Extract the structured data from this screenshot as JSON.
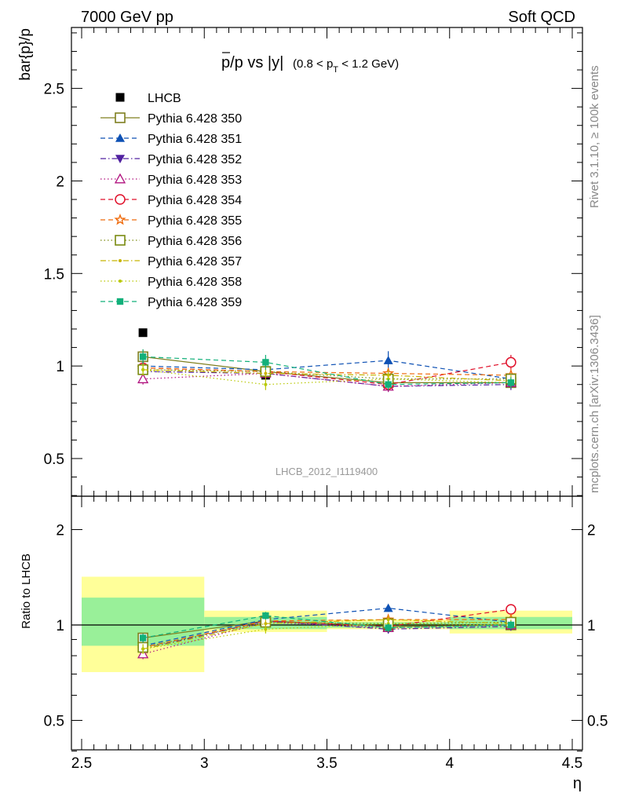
{
  "header": {
    "left": "7000 GeV pp",
    "right": "Soft QCD"
  },
  "side_text": {
    "rivet": "Rivet 3.1.10, ≥ 100k events",
    "mcplots": "mcplots.cern.ch [arXiv:1306.3436]"
  },
  "chart_data": [
    {
      "type": "scatter",
      "title": "p̅/p vs |y|",
      "title_main": "p/p vs |y|",
      "title_range": "(0.8 < p",
      "title_range_sub": "T",
      "title_range_end": " < 1.2 GeV)",
      "ylabel": "bar{p}/p",
      "watermark": "LHCB_2012_I1119400",
      "xlim": [
        2.5,
        4.5
      ],
      "ylim": [
        0.3,
        2.85
      ],
      "yticks": [
        0.5,
        1,
        1.5,
        2,
        2.5
      ],
      "ytick_labels": [
        "0.5",
        "1",
        "1.5",
        "2",
        "2.5"
      ],
      "x": [
        2.75,
        3.25,
        3.75,
        4.25
      ],
      "series": [
        {
          "name": "LHCB",
          "color": "#000000",
          "marker": "square-filled",
          "line": "none",
          "values": [
            1.18,
            0.95,
            null,
            null
          ]
        },
        {
          "name": "Pythia 6.428 350",
          "color": "#7f7f1f",
          "marker": "square-open",
          "line": "solid",
          "values": [
            1.05,
            0.97,
            0.91,
            0.91
          ],
          "err": [
            0.04,
            0.03,
            0.03,
            0.03
          ]
        },
        {
          "name": "Pythia 6.428 351",
          "color": "#0e51b4",
          "marker": "triangle-up-filled",
          "line": "dashed",
          "values": [
            1.0,
            0.98,
            1.03,
            0.93
          ],
          "err": [
            0.03,
            0.03,
            0.05,
            0.03
          ]
        },
        {
          "name": "Pythia 6.428 352",
          "color": "#5020a0",
          "marker": "triangle-down-filled",
          "line": "dashdot",
          "values": [
            0.97,
            0.96,
            0.89,
            0.9
          ],
          "err": [
            0.03,
            0.03,
            0.03,
            0.03
          ]
        },
        {
          "name": "Pythia 6.428 353",
          "color": "#b0107e",
          "marker": "triangle-up-open",
          "line": "dotted",
          "values": [
            0.93,
            0.96,
            0.89,
            0.91
          ],
          "err": [
            0.03,
            0.03,
            0.03,
            0.03
          ]
        },
        {
          "name": "Pythia 6.428 354",
          "color": "#e0102a",
          "marker": "circle-open",
          "line": "dashed",
          "values": [
            0.99,
            0.97,
            0.9,
            1.02
          ],
          "err": [
            0.03,
            0.03,
            0.03,
            0.04
          ]
        },
        {
          "name": "Pythia 6.428 355",
          "color": "#ef6c0f",
          "marker": "star-open",
          "line": "dashed",
          "values": [
            0.99,
            0.97,
            0.96,
            0.95
          ],
          "err": [
            0.03,
            0.03,
            0.03,
            0.03
          ]
        },
        {
          "name": "Pythia 6.428 356",
          "color": "#7a8a10",
          "marker": "square-open",
          "line": "dotted",
          "values": [
            0.98,
            0.97,
            0.93,
            0.93
          ],
          "err": [
            0.03,
            0.03,
            0.03,
            0.03
          ]
        },
        {
          "name": "Pythia 6.428 357",
          "color": "#c8b400",
          "marker": "small-dot",
          "line": "dashdot",
          "values": [
            0.98,
            0.96,
            0.95,
            0.92
          ],
          "err": [
            0.03,
            0.03,
            0.03,
            0.03
          ]
        },
        {
          "name": "Pythia 6.428 358",
          "color": "#b8c800",
          "marker": "small-dot",
          "line": "dotted",
          "values": [
            0.98,
            0.9,
            0.93,
            0.91
          ],
          "err": [
            0.03,
            0.03,
            0.03,
            0.03
          ]
        },
        {
          "name": "Pythia 6.428 359",
          "color": "#12b07a",
          "marker": "square-filled-small",
          "line": "dashed",
          "values": [
            1.05,
            1.02,
            0.9,
            0.91
          ],
          "err": [
            0.04,
            0.04,
            0.03,
            0.03
          ]
        }
      ]
    },
    {
      "type": "scatter",
      "ylabel": "Ratio to LHCB",
      "xlabel": "η",
      "xlim": [
        2.5,
        4.5
      ],
      "ylim": [
        0.35,
        2.35
      ],
      "log_y": true,
      "yticks": [
        0.5,
        1,
        2
      ],
      "ytick_labels": [
        "0.5",
        "1",
        "2"
      ],
      "xticks": [
        2.5,
        3,
        3.5,
        4,
        4.5
      ],
      "xtick_labels": [
        "2.5",
        "3",
        "3.5",
        "4",
        "4.5"
      ],
      "bands": [
        {
          "x": [
            2.5,
            3.0
          ],
          "yellow": [
            0.71,
            1.42
          ],
          "green": [
            0.86,
            1.22
          ]
        },
        {
          "x": [
            3.0,
            3.5
          ],
          "yellow": [
            0.95,
            1.11
          ],
          "green": [
            0.97,
            1.06
          ]
        },
        {
          "x": [
            3.5,
            4.0
          ],
          "yellow": [
            0.97,
            1.04
          ],
          "green": [
            0.98,
            1.02
          ]
        },
        {
          "x": [
            4.0,
            4.5
          ],
          "yellow": [
            0.94,
            1.11
          ],
          "green": [
            0.97,
            1.06
          ]
        }
      ],
      "x": [
        2.75,
        3.25,
        3.75,
        4.25
      ],
      "series": [
        {
          "name": "Pythia 6.428 350",
          "values": [
            0.91,
            1.03,
            0.99,
            1.0
          ]
        },
        {
          "name": "Pythia 6.428 351",
          "values": [
            0.86,
            1.04,
            1.13,
            1.02
          ]
        },
        {
          "name": "Pythia 6.428 352",
          "values": [
            0.84,
            1.03,
            0.97,
            0.99
          ]
        },
        {
          "name": "Pythia 6.428 353",
          "values": [
            0.81,
            1.02,
            0.98,
            1.0
          ]
        },
        {
          "name": "Pythia 6.428 354",
          "values": [
            0.85,
            1.03,
            0.99,
            1.12
          ]
        },
        {
          "name": "Pythia 6.428 355",
          "values": [
            0.85,
            1.03,
            1.04,
            1.04
          ]
        },
        {
          "name": "Pythia 6.428 356",
          "values": [
            0.85,
            1.02,
            1.01,
            1.02
          ]
        },
        {
          "name": "Pythia 6.428 357",
          "values": [
            0.84,
            1.01,
            1.04,
            1.01
          ]
        },
        {
          "name": "Pythia 6.428 358",
          "values": [
            0.84,
            0.97,
            1.01,
            1.0
          ]
        },
        {
          "name": "Pythia 6.428 359",
          "values": [
            0.91,
            1.07,
            0.98,
            1.0
          ]
        }
      ]
    }
  ]
}
